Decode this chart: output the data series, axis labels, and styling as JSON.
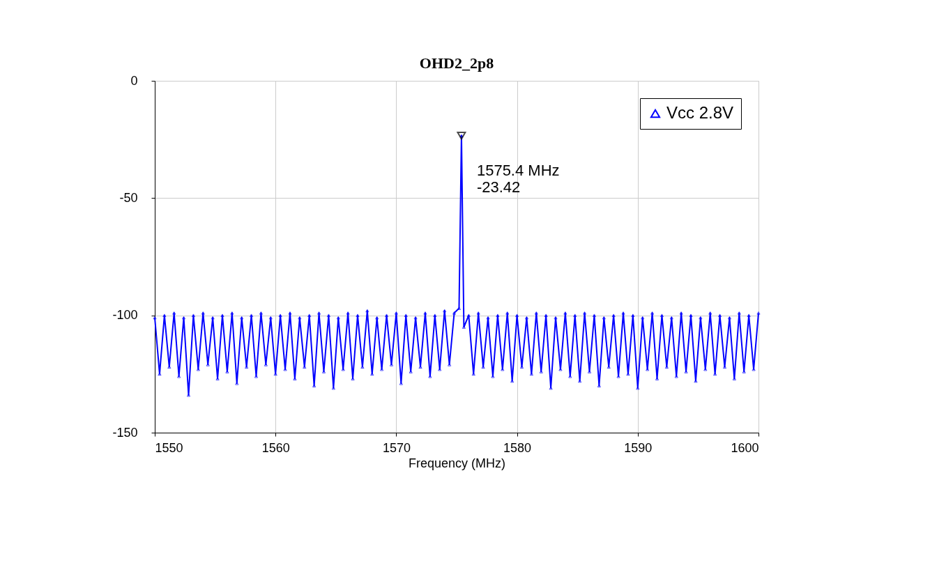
{
  "chart_data": {
    "type": "line",
    "title": "OHD2_2p8",
    "xlabel": "Frequency (MHz)",
    "xlim": [
      1550,
      1600
    ],
    "xticks": [
      1550,
      1560,
      1570,
      1580,
      1590,
      1600
    ],
    "ylim": [
      -150,
      0
    ],
    "yticks": [
      0,
      -50,
      -100,
      -150
    ],
    "grid": true,
    "legend": "top right",
    "marker": "triangle",
    "line_style": "solid",
    "annotations": [
      {
        "text": "1575.4 MHz\n-23.42",
        "x": 1575.4,
        "y": -23.42
      }
    ],
    "series": [
      {
        "name": "Vcc 2.8V",
        "color": "#0000ff",
        "x": [
          1550.0,
          1550.4,
          1550.8,
          1551.2,
          1551.6,
          1552.0,
          1552.4,
          1552.8,
          1553.2,
          1553.6,
          1554.0,
          1554.4,
          1554.8,
          1555.2,
          1555.6,
          1556.0,
          1556.4,
          1556.8,
          1557.2,
          1557.6,
          1558.0,
          1558.4,
          1558.8,
          1559.2,
          1559.6,
          1560.0,
          1560.4,
          1560.8,
          1561.2,
          1561.6,
          1562.0,
          1562.4,
          1562.8,
          1563.2,
          1563.6,
          1564.0,
          1564.4,
          1564.8,
          1565.2,
          1565.6,
          1566.0,
          1566.4,
          1566.8,
          1567.2,
          1567.6,
          1568.0,
          1568.4,
          1568.8,
          1569.2,
          1569.6,
          1570.0,
          1570.4,
          1570.8,
          1571.2,
          1571.6,
          1572.0,
          1572.4,
          1572.8,
          1573.2,
          1573.6,
          1574.0,
          1574.4,
          1574.8,
          1575.2,
          1575.4,
          1575.6,
          1576.0,
          1576.4,
          1576.8,
          1577.2,
          1577.6,
          1578.0,
          1578.4,
          1578.8,
          1579.2,
          1579.6,
          1580.0,
          1580.4,
          1580.8,
          1581.2,
          1581.6,
          1582.0,
          1582.4,
          1582.8,
          1583.2,
          1583.6,
          1584.0,
          1584.4,
          1584.8,
          1585.2,
          1585.6,
          1586.0,
          1586.4,
          1586.8,
          1587.2,
          1587.6,
          1588.0,
          1588.4,
          1588.8,
          1589.2,
          1589.6,
          1590.0,
          1590.4,
          1590.8,
          1591.2,
          1591.6,
          1592.0,
          1592.4,
          1592.8,
          1593.2,
          1593.6,
          1594.0,
          1594.4,
          1594.8,
          1595.2,
          1595.6,
          1596.0,
          1596.4,
          1596.8,
          1597.2,
          1597.6,
          1598.0,
          1598.4,
          1598.8,
          1599.2,
          1599.6,
          1600.0
        ],
        "values": [
          -101,
          -125,
          -100,
          -122,
          -99,
          -126,
          -101,
          -134,
          -100,
          -123,
          -99,
          -121,
          -101,
          -127,
          -100,
          -124,
          -99,
          -129,
          -101,
          -122,
          -100,
          -126,
          -99,
          -121,
          -101,
          -125,
          -100,
          -123,
          -99,
          -127,
          -101,
          -122,
          -100,
          -130,
          -99,
          -124,
          -100,
          -131,
          -101,
          -123,
          -99,
          -127,
          -100,
          -122,
          -98,
          -125,
          -101,
          -123,
          -100,
          -121,
          -99,
          -129,
          -100,
          -124,
          -101,
          -122,
          -99,
          -126,
          -100,
          -123,
          -98,
          -121,
          -99,
          -97,
          -23.42,
          -105,
          -100,
          -125,
          -99,
          -122,
          -101,
          -126,
          -100,
          -123,
          -99,
          -128,
          -100,
          -122,
          -101,
          -125,
          -99,
          -124,
          -100,
          -131,
          -101,
          -123,
          -99,
          -126,
          -100,
          -128,
          -99,
          -124,
          -100,
          -130,
          -101,
          -122,
          -100,
          -126,
          -99,
          -125,
          -100,
          -131,
          -101,
          -123,
          -99,
          -127,
          -100,
          -122,
          -101,
          -126,
          -99,
          -124,
          -100,
          -128,
          -101,
          -123,
          -99,
          -125,
          -100,
          -122,
          -101,
          -127,
          -99,
          -124,
          -100,
          -123,
          -99
        ]
      }
    ]
  }
}
